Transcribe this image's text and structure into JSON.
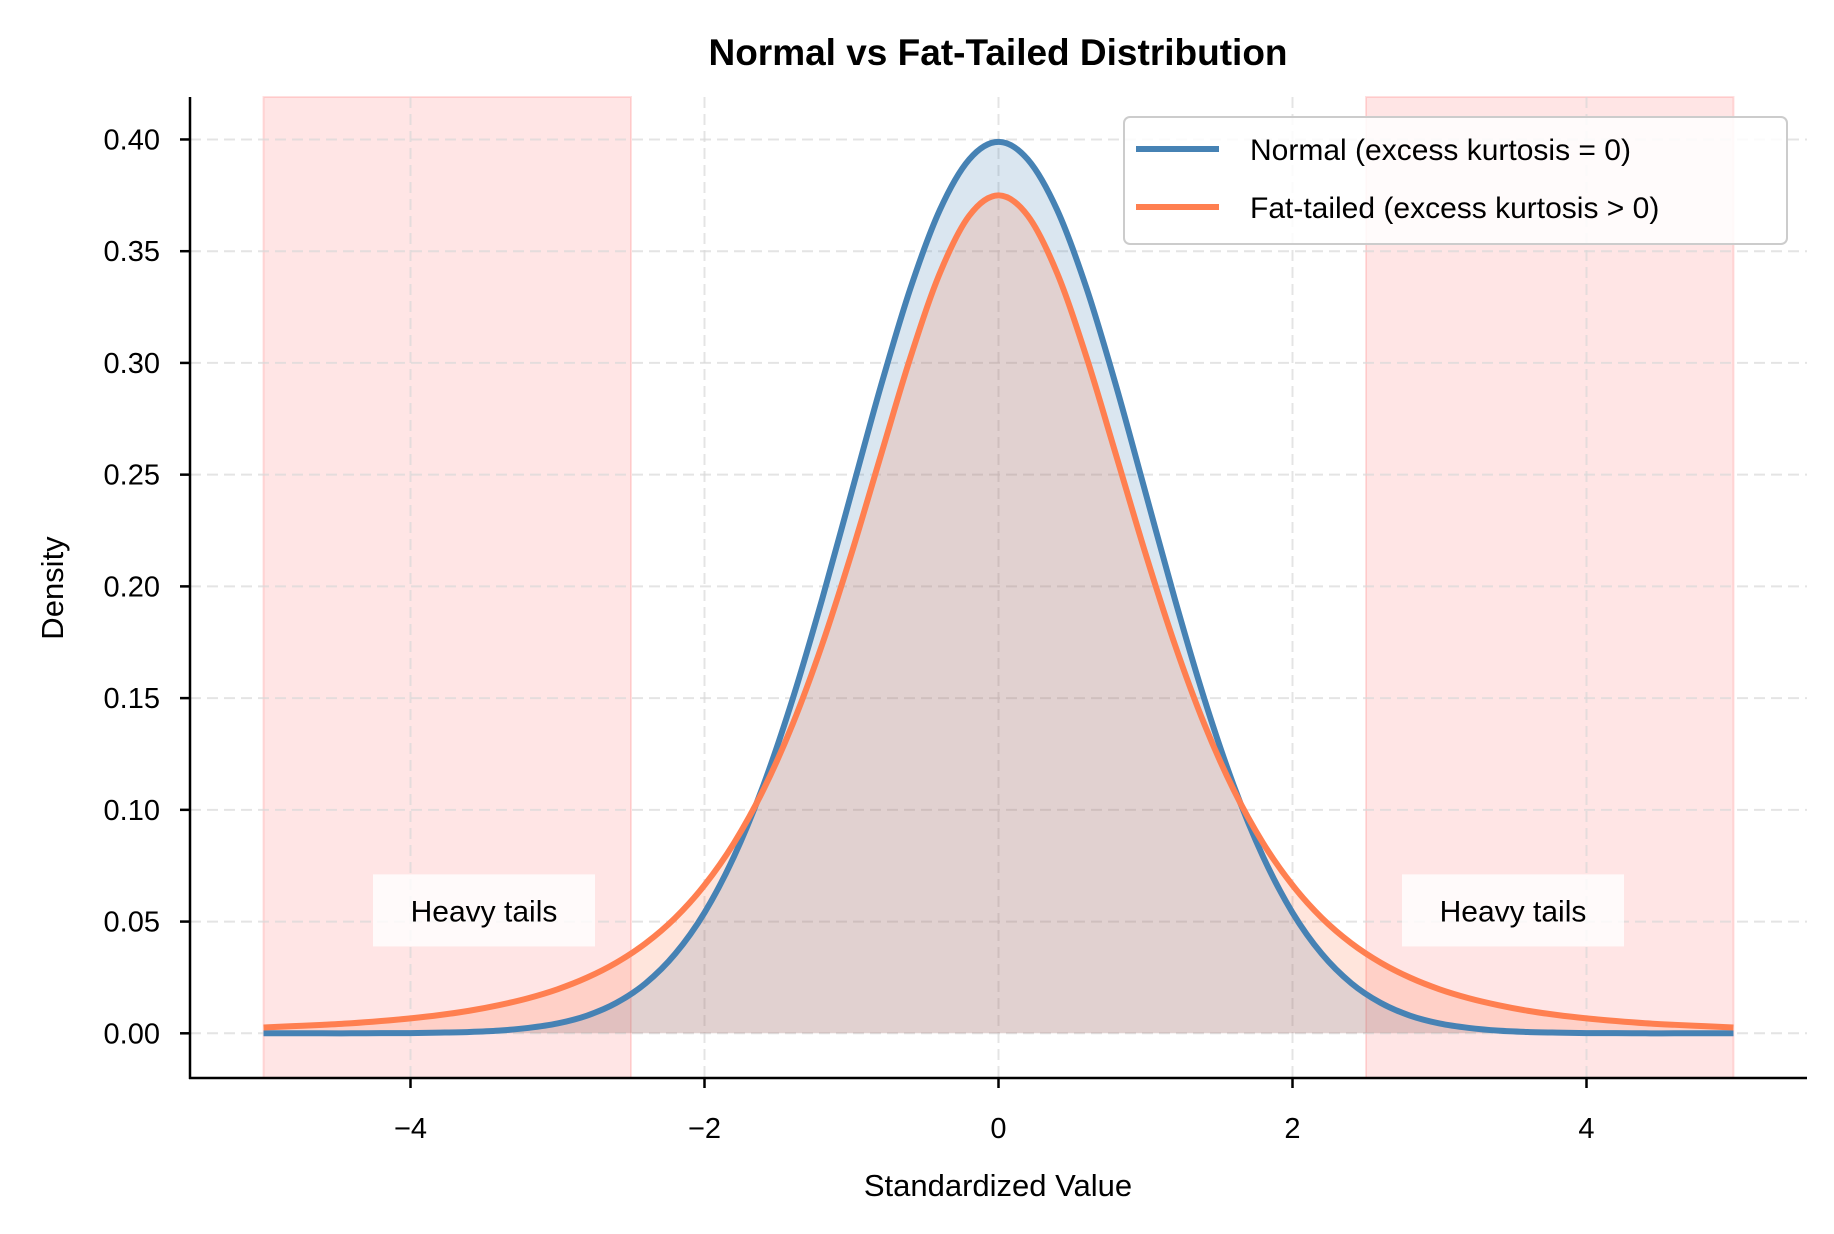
{
  "chart_data": {
    "type": "line",
    "title": "Normal vs Fat-Tailed Distribution",
    "xlabel": "Standardized Value",
    "ylabel": "Density",
    "xlim": [
      -5.5,
      5.5
    ],
    "ylim": [
      -0.02,
      0.419
    ],
    "xticks": [
      -4,
      -2,
      0,
      2,
      4
    ],
    "xtick_labels": [
      "−4",
      "−2",
      "0",
      "2",
      "4"
    ],
    "yticks": [
      0,
      0.05,
      0.1,
      0.15,
      0.2,
      0.25,
      0.3,
      0.35,
      0.4
    ],
    "ytick_labels": [
      "0.00",
      "0.05",
      "0.10",
      "0.15",
      "0.20",
      "0.25",
      "0.30",
      "0.35",
      "0.40"
    ],
    "grid": true,
    "legend_placement": "top-right",
    "x_half": [
      0,
      0.2,
      0.4,
      0.6,
      0.8,
      1.0,
      1.2,
      1.4,
      1.6,
      1.8,
      2.0,
      2.2,
      2.4,
      2.6,
      2.8,
      3.0,
      3.2,
      3.4,
      3.6,
      3.8,
      4.0,
      4.2,
      4.4,
      4.6,
      4.8,
      5.0
    ],
    "symmetric_about_zero": true,
    "series": [
      {
        "name": "Normal (excess kurtosis = 0)",
        "color": "#4682b4",
        "values_half": [
          0.3989,
          0.391,
          0.3683,
          0.3332,
          0.2897,
          0.242,
          0.1942,
          0.1497,
          0.1109,
          0.079,
          0.054,
          0.0355,
          0.0224,
          0.0136,
          0.0079,
          0.0044,
          0.0024,
          0.0012,
          0.0006,
          0.0003,
          0.0001,
          0.0001,
          0.0,
          0.0,
          0.0,
          0.0
        ]
      },
      {
        "name": "Fat-tailed (excess kurtosis > 0)",
        "color": "#ff7f50",
        "values_half": [
          0.375,
          0.3658,
          0.34,
          0.3023,
          0.2587,
          0.2147,
          0.1739,
          0.1384,
          0.1089,
          0.0851,
          0.0663,
          0.0516,
          0.0403,
          0.0316,
          0.0249,
          0.0197,
          0.0157,
          0.0126,
          0.0101,
          0.0082,
          0.0067,
          0.0055,
          0.0045,
          0.0038,
          0.0032,
          0.0026
        ]
      }
    ],
    "shaded_regions": [
      {
        "x_range": [
          -5,
          -2.5
        ],
        "color": "#ff0000"
      },
      {
        "x_range": [
          2.5,
          5
        ],
        "color": "#ff0000"
      }
    ],
    "annotations": [
      {
        "text": "Heavy tails",
        "x": -3.5,
        "y": 0.055
      },
      {
        "text": "Heavy tails",
        "x": 3.5,
        "y": 0.055
      }
    ]
  }
}
